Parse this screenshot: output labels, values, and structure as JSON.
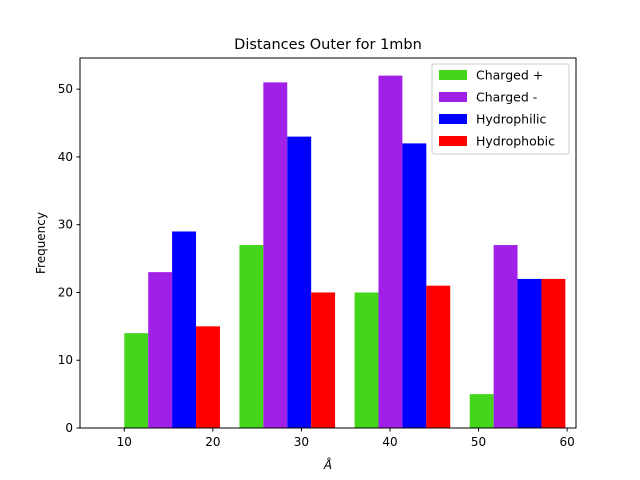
{
  "chart_data": {
    "type": "bar",
    "title": "Distances Outer for 1mbn",
    "xlabel": "Å",
    "ylabel": "Frequency",
    "bins": [
      10,
      23,
      36,
      49
    ],
    "bar_width": 2.7,
    "xlim": [
      5,
      61
    ],
    "ylim": [
      0,
      54.6
    ],
    "xticks": [
      10,
      20,
      30,
      40,
      50,
      60
    ],
    "yticks": [
      0,
      10,
      20,
      30,
      40,
      50
    ],
    "legend_position": "top-right",
    "series": [
      {
        "name": "Charged +",
        "color": "#43d61a",
        "values": [
          14,
          27,
          20,
          5
        ]
      },
      {
        "name": "Charged -",
        "color": "#a020e8",
        "values": [
          23,
          51,
          52,
          27
        ]
      },
      {
        "name": "Hydrophilic",
        "color": "#0000ff",
        "values": [
          29,
          43,
          42,
          22
        ]
      },
      {
        "name": "Hydrophobic",
        "color": "#ff0000",
        "values": [
          15,
          20,
          21,
          22
        ]
      }
    ]
  }
}
